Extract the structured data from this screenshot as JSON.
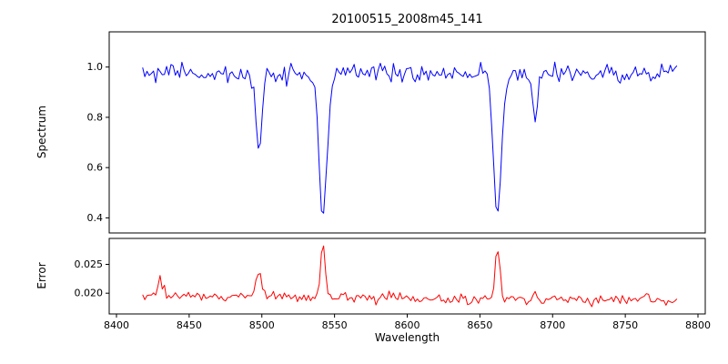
{
  "figure": {
    "title": "20100515_2008m45_141",
    "xlabel": "Wavelength",
    "background_color": "#ffffff",
    "axes_color": "#000000",
    "grid": false,
    "legend": false
  },
  "chart_data": [
    {
      "id": "spectrum",
      "type": "line",
      "title": "20100515_2008m45_141",
      "ylabel": "Spectrum",
      "line_color": "#0000ff",
      "xlim": [
        8395,
        8805
      ],
      "ylim": [
        0.34,
        1.14
      ],
      "ytick_values": [
        0.4,
        0.6,
        0.8,
        1.0
      ],
      "ytick_labels": [
        "0.4",
        "0.6",
        "0.8",
        "1.0"
      ],
      "x_start": 8418,
      "x_end": 8786,
      "x_step": 1.5,
      "continuum_level": 0.975,
      "noise_amplitude": 0.018,
      "spike_probability": 0.05,
      "spike_depth": 0.05,
      "noise_seed": 20100515,
      "absorption_lines": [
        {
          "center": 8498.0,
          "depth": 0.33,
          "sigma": 2.0,
          "min_flux": 0.64
        },
        {
          "center": 8542.1,
          "depth": 0.575,
          "sigma": 2.8,
          "min_flux": 0.4
        },
        {
          "center": 8662.1,
          "depth": 0.565,
          "sigma": 2.8,
          "min_flux": 0.41
        },
        {
          "center": 8688.0,
          "depth": 0.19,
          "sigma": 1.6,
          "min_flux": 0.78
        }
      ]
    },
    {
      "id": "error",
      "type": "line",
      "ylabel": "Error",
      "xlabel": "Wavelength",
      "line_color": "#ff0000",
      "xlim": [
        8395,
        8805
      ],
      "ylim": [
        0.0164,
        0.0295
      ],
      "ytick_values": [
        0.02,
        0.025
      ],
      "ytick_labels": [
        "0.020",
        "0.025"
      ],
      "xtick_values": [
        8400,
        8450,
        8500,
        8550,
        8600,
        8650,
        8700,
        8750,
        8800
      ],
      "xtick_labels": [
        "8400",
        "8450",
        "8500",
        "8550",
        "8600",
        "8650",
        "8700",
        "8750",
        "8800"
      ],
      "x_start": 8418,
      "x_end": 8786,
      "x_step": 1.5,
      "baseline_start": 0.0196,
      "baseline_end": 0.0186,
      "noise_amplitude": 0.00045,
      "noise_seed": 141,
      "peaks": [
        {
          "center": 8430.0,
          "amplitude": 0.0022,
          "sigma": 2.0
        },
        {
          "center": 8498.0,
          "amplitude": 0.0045,
          "sigma": 1.8
        },
        {
          "center": 8542.1,
          "amplitude": 0.0092,
          "sigma": 1.6
        },
        {
          "center": 8662.1,
          "amplitude": 0.009,
          "sigma": 1.6
        },
        {
          "center": 8688.0,
          "amplitude": 0.0014,
          "sigma": 1.5
        },
        {
          "center": 8765.0,
          "amplitude": 0.0016,
          "sigma": 1.5
        }
      ]
    }
  ]
}
